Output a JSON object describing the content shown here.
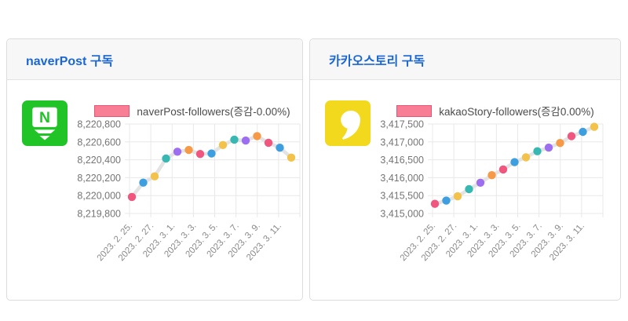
{
  "panels": [
    {
      "title": "naverPost 구독",
      "icon": "naverpost-icon",
      "icon_bg": "#20c427"
    },
    {
      "title": "카카오스토리 구독",
      "icon": "kakaostory-icon",
      "icon_bg": "#f2d91e"
    }
  ],
  "colors": {
    "title": "#1a66d4",
    "grid": "#e8e8e8",
    "y_label": "#757575",
    "x_label": "#8a8a8a",
    "line": "#e3e3e3",
    "legend_fill": "#f87e95",
    "legend_border": "#ea5372",
    "point_palette": [
      "#f0567e",
      "#3d9fe0",
      "#f2c24a",
      "#38b8b2",
      "#9d6ff0",
      "#f79a47"
    ]
  },
  "chart_data": [
    {
      "type": "line",
      "legend": "naverPost-followers(증감-0.00%)",
      "legend_position": "top",
      "grid": true,
      "x_tick_labels": [
        "2023. 2. 25.",
        "2023. 2. 27.",
        "2023. 3. 1.",
        "2023. 3. 3.",
        "2023. 3. 5.",
        "2023. 3. 7.",
        "2023. 3. 9.",
        "2023. 3. 11."
      ],
      "y_tick_labels": [
        "8,220,800",
        "8,220,600",
        "8,220,400",
        "8,220,200",
        "8,220,000",
        "8,219,800"
      ],
      "ylim": [
        8219800,
        8220800
      ],
      "values": [
        8219985,
        8220145,
        8220215,
        8220415,
        8220490,
        8220510,
        8220465,
        8220470,
        8220565,
        8220625,
        8220615,
        8220665,
        8220590,
        8220535,
        8220425
      ]
    },
    {
      "type": "line",
      "legend": "kakaoStory-followers(증감0.00%)",
      "legend_position": "top",
      "grid": true,
      "x_tick_labels": [
        "2023. 2. 25.",
        "2023. 2. 27.",
        "2023. 3. 1.",
        "2023. 3. 3.",
        "2023. 3. 5.",
        "2023. 3. 7.",
        "2023. 3. 9.",
        "2023. 3. 11."
      ],
      "y_tick_labels": [
        "3,417,500",
        "3,417,000",
        "3,416,500",
        "3,416,000",
        "3,415,500",
        "3,415,000"
      ],
      "ylim": [
        3415000,
        3417500
      ],
      "values": [
        3415270,
        3415360,
        3415480,
        3415680,
        3415860,
        3416070,
        3416230,
        3416435,
        3416570,
        3416740,
        3416840,
        3416970,
        3417160,
        3417280,
        3417420
      ]
    }
  ]
}
